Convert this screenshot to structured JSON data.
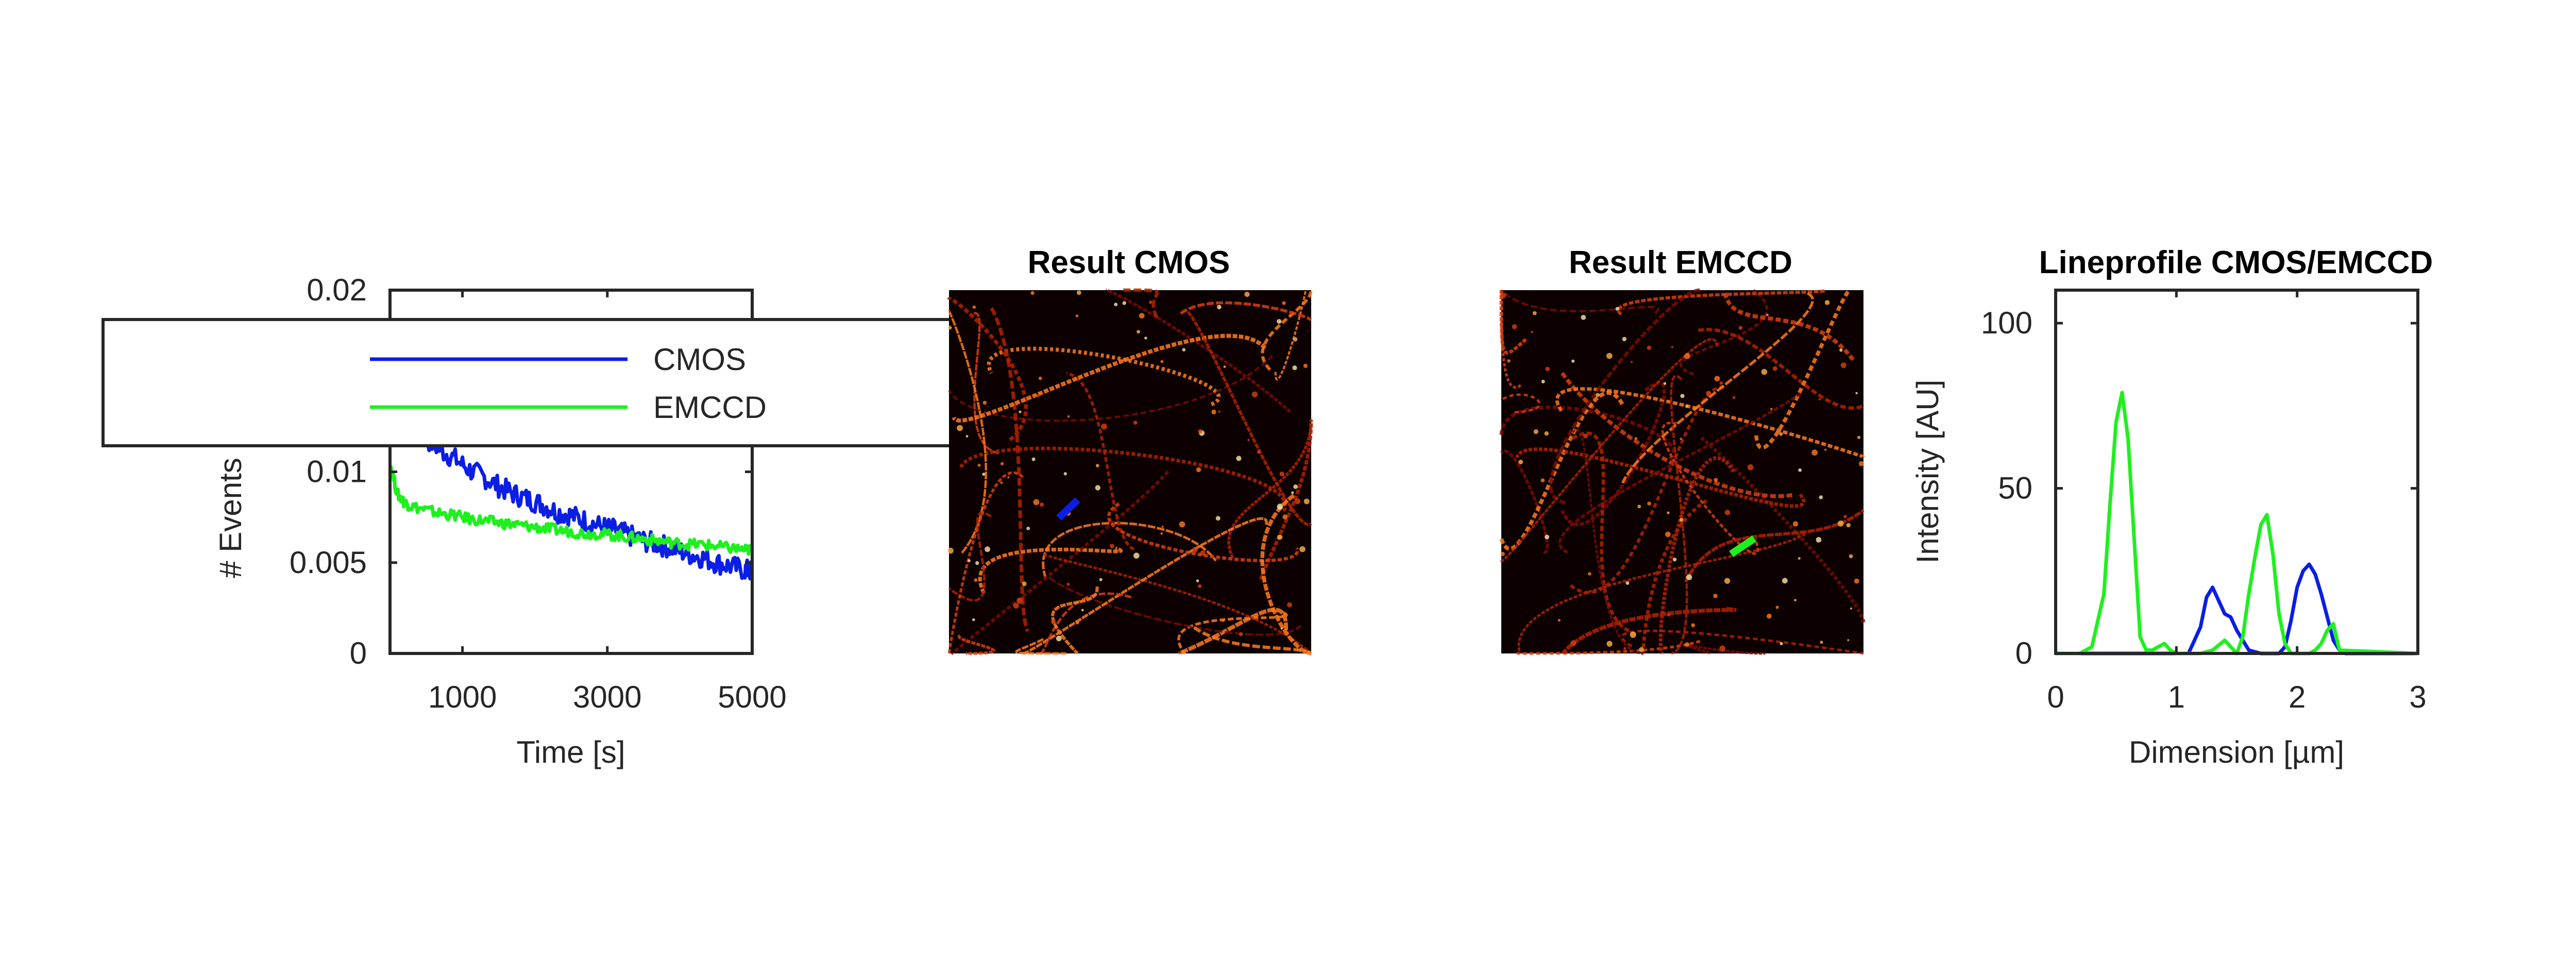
{
  "colors": {
    "cmos": "#0a1ee6",
    "emccd": "#1ef01e",
    "axis": "#262626",
    "image_bg": "#0c0000"
  },
  "panels": {
    "events": {
      "ylabel": "# Events",
      "xlabel": "Time [s]"
    },
    "cmos_image": {
      "title": "Result CMOS"
    },
    "emccd_image": {
      "title": "Result EMCCD"
    },
    "profile": {
      "title": "Lineprofile CMOS/EMCCD",
      "xlabel": "Dimension [µm]",
      "ylabel": "Intensity [AU]"
    }
  },
  "chart_data": [
    {
      "type": "line",
      "title": "",
      "xlabel": "Time [s]",
      "ylabel": "# Events",
      "xlim": [
        0,
        5000
      ],
      "ylim": [
        0,
        0.02
      ],
      "xticks": [
        1000,
        3000,
        5000
      ],
      "xtick_labels": [
        "1000",
        "3000",
        "5000"
      ],
      "yticks": [
        0,
        0.005,
        0.01,
        0.02
      ],
      "ytick_labels": [
        "0",
        "0.005",
        "0.01",
        "0.02"
      ],
      "grid": false,
      "legend": "top, overlapping plot",
      "series": [
        {
          "name": "CMOS",
          "color": "#0a1ee6",
          "x": [
            0,
            100,
            200,
            300,
            500,
            700,
            900,
            1100,
            1300,
            1500,
            1700,
            1900,
            2100,
            2300,
            2500,
            2700,
            2900,
            3100,
            3300,
            3500,
            3700,
            3900,
            4100,
            4300,
            4500,
            4700,
            4900,
            5000
          ],
          "y": [
            0.0125,
            0.0135,
            0.013,
            0.0125,
            0.0118,
            0.0112,
            0.0107,
            0.0101,
            0.0097,
            0.0092,
            0.0088,
            0.0085,
            0.0082,
            0.0078,
            0.0076,
            0.0073,
            0.007,
            0.0068,
            0.0065,
            0.0062,
            0.006,
            0.0058,
            0.0055,
            0.0053,
            0.005,
            0.0048,
            0.0046,
            0.0045
          ]
        },
        {
          "name": "EMCCD",
          "color": "#1ef01e",
          "x": [
            0,
            100,
            200,
            300,
            500,
            700,
            900,
            1100,
            1300,
            1500,
            1700,
            1900,
            2100,
            2300,
            2500,
            2700,
            2900,
            3100,
            3300,
            3500,
            3700,
            3900,
            4100,
            4300,
            4500,
            4700,
            4900,
            5000
          ],
          "y": [
            0.0105,
            0.0088,
            0.0083,
            0.0081,
            0.0079,
            0.0077,
            0.0076,
            0.0074,
            0.0073,
            0.0072,
            0.0071,
            0.007,
            0.0069,
            0.0068,
            0.0067,
            0.0066,
            0.0066,
            0.0065,
            0.0064,
            0.0063,
            0.0062,
            0.0061,
            0.006,
            0.006,
            0.0059,
            0.0058,
            0.0057,
            0.0057
          ]
        }
      ]
    },
    {
      "type": "line",
      "title": "Lineprofile CMOS/EMCCD",
      "xlabel": "Dimension [µm]",
      "ylabel": "Intensity [AU]",
      "xlim": [
        0,
        3
      ],
      "ylim": [
        0,
        110
      ],
      "xticks": [
        0,
        1,
        2,
        3
      ],
      "xtick_labels": [
        "0",
        "1",
        "2",
        "3"
      ],
      "yticks": [
        0,
        50,
        100
      ],
      "ytick_labels": [
        "0",
        "50",
        "100"
      ],
      "grid": false,
      "series": [
        {
          "name": "CMOS",
          "color": "#0a1ee6",
          "x": [
            0,
            1.1,
            1.2,
            1.25,
            1.3,
            1.35,
            1.4,
            1.45,
            1.5,
            1.55,
            1.6,
            1.7,
            1.85,
            1.9,
            1.95,
            2.0,
            2.05,
            2.1,
            2.15,
            2.2,
            2.25,
            2.3,
            2.35,
            2.4,
            3.0
          ],
          "y": [
            0,
            0,
            8,
            17,
            20,
            16,
            12,
            11,
            7,
            4,
            1,
            0,
            0,
            2,
            10,
            20,
            25,
            27,
            24,
            18,
            11,
            4,
            1,
            0,
            0
          ]
        },
        {
          "name": "EMCCD",
          "color": "#1ef01e",
          "x": [
            0,
            0.2,
            0.3,
            0.4,
            0.45,
            0.5,
            0.55,
            0.6,
            0.65,
            0.7,
            0.75,
            0.8,
            0.9,
            0.95,
            1.0,
            1.1,
            1.2,
            1.3,
            1.4,
            1.45,
            1.5,
            1.55,
            1.6,
            1.65,
            1.7,
            1.75,
            1.8,
            1.85,
            1.9,
            1.95,
            2.0,
            2.1,
            2.15,
            2.2,
            2.25,
            2.3,
            2.35,
            3.0
          ],
          "y": [
            0,
            0,
            2,
            18,
            45,
            70,
            79,
            65,
            35,
            5,
            1,
            1,
            3,
            1,
            0,
            0,
            0,
            1,
            4,
            2,
            0,
            5,
            18,
            29,
            39,
            42,
            30,
            12,
            3,
            0,
            0,
            0,
            1,
            3,
            7,
            9,
            1,
            0
          ]
        }
      ]
    }
  ]
}
